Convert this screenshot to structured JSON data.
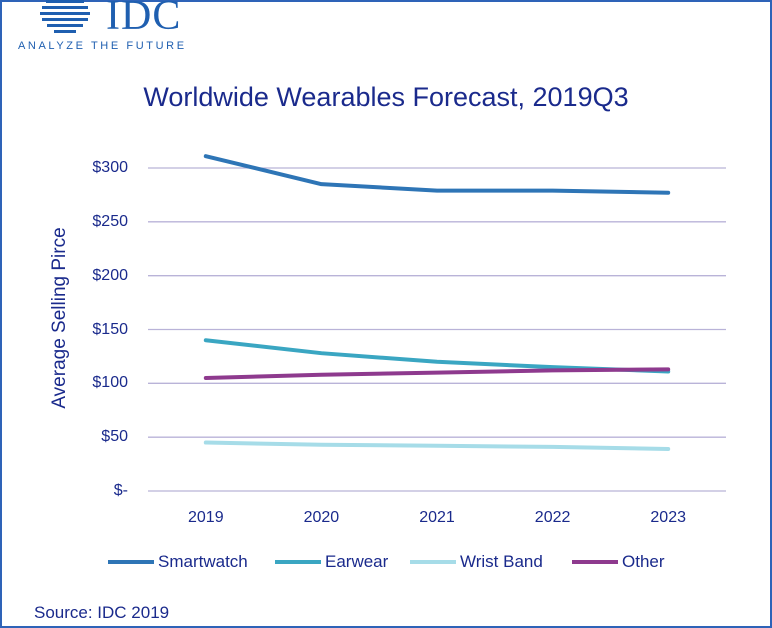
{
  "logo": {
    "name": "IDC",
    "tagline": "ANALYZE THE FUTURE",
    "color": "#1f5fb0"
  },
  "footer": {
    "source": "Source: IDC 2019"
  },
  "chart_data": {
    "type": "line",
    "title": "Worldwide Wearables Forecast, 2019Q3",
    "ylabel": "Average Selling Pirce",
    "xlabel": "",
    "categories": [
      "2019",
      "2020",
      "2021",
      "2022",
      "2023"
    ],
    "ylim": [
      0,
      300
    ],
    "yticks": [
      {
        "value": 300,
        "label": "$300"
      },
      {
        "value": 250,
        "label": "$250"
      },
      {
        "value": 200,
        "label": "$200"
      },
      {
        "value": 150,
        "label": "$150"
      },
      {
        "value": 100,
        "label": "$100"
      },
      {
        "value": 50,
        "label": "$50"
      },
      {
        "value": 0,
        "label": "$-"
      }
    ],
    "grid": true,
    "legend_position": "bottom",
    "series": [
      {
        "name": "Smartwatch",
        "color": "#2e75b6",
        "values": [
          311,
          285,
          279,
          279,
          277
        ]
      },
      {
        "name": "Earwear",
        "color": "#3aa6c2",
        "values": [
          140,
          128,
          120,
          115,
          111
        ]
      },
      {
        "name": "Wrist Band",
        "color": "#a6dce8",
        "values": [
          45,
          43,
          42,
          41,
          39
        ]
      },
      {
        "name": "Other",
        "color": "#8e3a8e",
        "values": [
          105,
          108,
          110,
          112,
          113
        ]
      }
    ]
  }
}
